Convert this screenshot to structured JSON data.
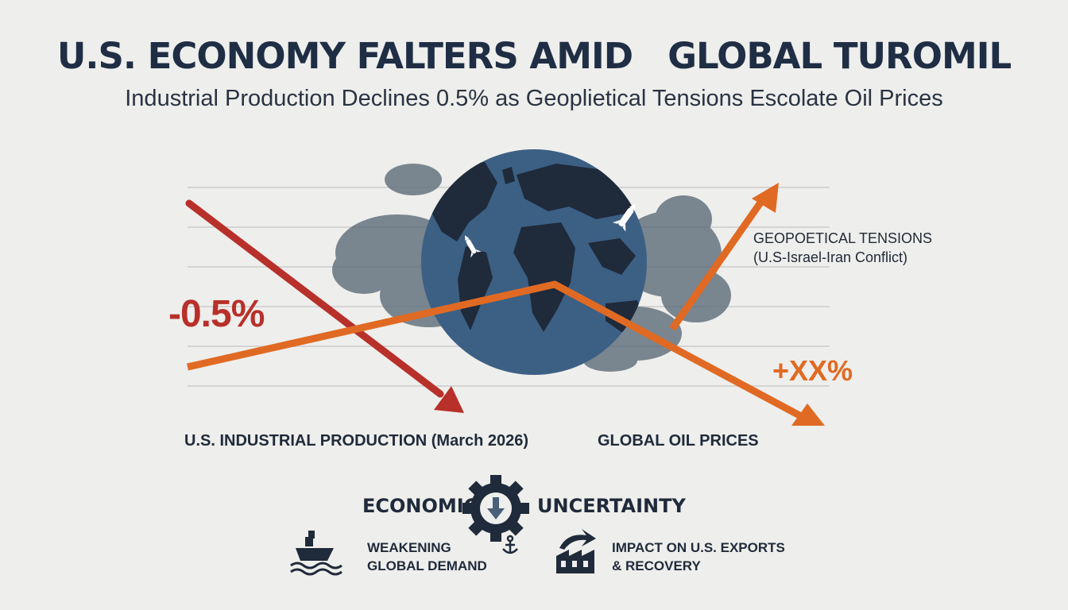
{
  "header": {
    "title": "U.S. ECONOMY FALTERS AMID   GLOBAL TUROMIL",
    "subtitle": "Industrial Production Declines 0.5% as Geoplietical Tensions Escolate Oil Prices"
  },
  "graphic": {
    "industrial_change": "-0.5%",
    "oil_change": "+XX%",
    "geopolitical_label": [
      "GEOPOETICAL TENSIONS",
      "(U.S-Israel-Iran Conflict)"
    ],
    "industrial_label": "U.S. INDUSTRIAL PRODUCTION (March 2026)",
    "oil_label": "GLOBAL OIL PRICES",
    "icons": [
      "globe-icon",
      "missile-icon",
      "gear-down-arrow-icon",
      "ship-icon",
      "anchor-icon",
      "factory-icon"
    ],
    "colors": {
      "decline": "#b8302a",
      "oil": "#e06a23",
      "globe": "#3c5f84",
      "land": "#1f2a3a"
    }
  },
  "footer": {
    "economic_left": "ECONOMIC",
    "economic_right": "UNCERTAINTY",
    "demand_label": [
      "WEAKENING",
      "GLOBAL DEMAND"
    ],
    "impact_label": [
      "IMPACT ON U.S. EXPORTS",
      "& RECOVERY"
    ]
  }
}
